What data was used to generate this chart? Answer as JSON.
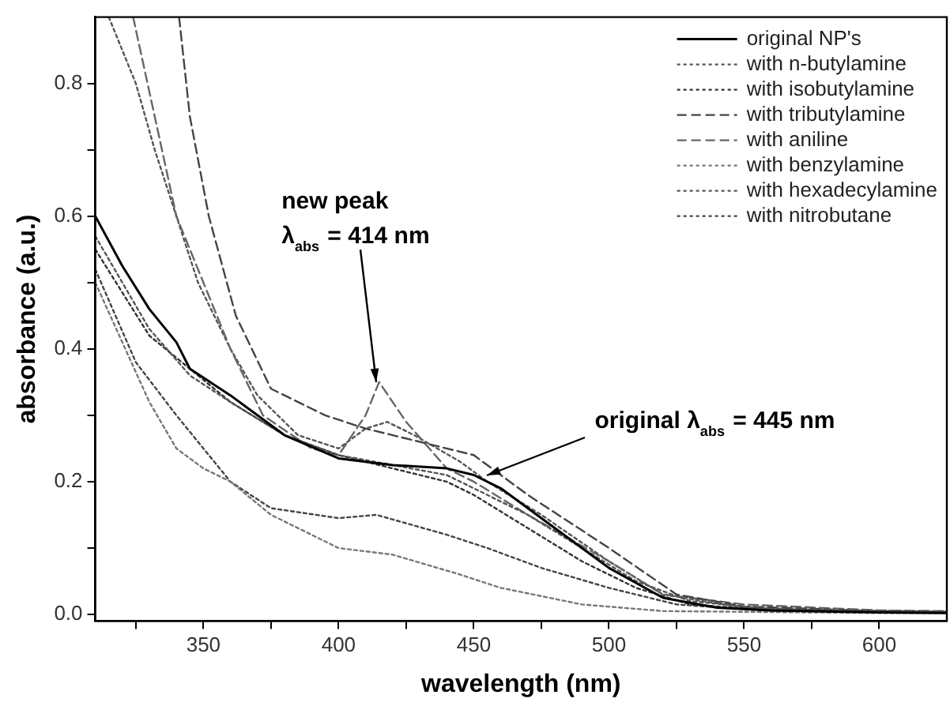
{
  "chart_data": {
    "type": "line",
    "xlabel": "wavelength (nm)",
    "ylabel": "absorbance (a.u.)",
    "xlim": [
      310,
      625
    ],
    "ylim": [
      -0.01,
      0.9
    ],
    "xticks": [
      {
        "value": 325,
        "label": null
      },
      350,
      {
        "value": 375,
        "label": null
      },
      400,
      {
        "value": 425,
        "label": null
      },
      450,
      {
        "value": 475,
        "label": null
      },
      500,
      {
        "value": 525,
        "label": null
      },
      550,
      {
        "value": 575,
        "label": null
      },
      600
    ],
    "yticks": [
      {
        "value": 0,
        "label": "0.0"
      },
      {
        "value": 0.1,
        "label": null
      },
      0.2,
      {
        "value": 0.3,
        "label": null
      },
      0.4,
      {
        "value": 0.5,
        "label": null
      },
      0.6,
      {
        "value": 0.7,
        "label": null
      },
      0.8
    ],
    "grid": false,
    "legend": "top right",
    "marker": "none",
    "series": [
      {
        "name": "original NP's",
        "color": "#000000",
        "line_style": "solid",
        "x": [
          310,
          320,
          330,
          340,
          345,
          360,
          380,
          400,
          420,
          440,
          450,
          460,
          480,
          500,
          520,
          540,
          560,
          600,
          625
        ],
        "values": [
          0.6,
          0.525,
          0.46,
          0.41,
          0.37,
          0.33,
          0.27,
          0.235,
          0.225,
          0.22,
          0.21,
          0.19,
          0.13,
          0.07,
          0.025,
          0.01,
          0.006,
          0.003,
          0.002
        ]
      },
      {
        "name": "with n-butylamine",
        "color": "#555555",
        "line_style": "dotted",
        "x": [
          310,
          330,
          345,
          360,
          380,
          400,
          420,
          440,
          450,
          470,
          490,
          510,
          530,
          560,
          625
        ],
        "values": [
          0.57,
          0.43,
          0.36,
          0.32,
          0.27,
          0.24,
          0.225,
          0.21,
          0.19,
          0.15,
          0.1,
          0.05,
          0.02,
          0.008,
          0.004
        ]
      },
      {
        "name": "with isobutylamine",
        "color": "#333333",
        "line_style": "dotted",
        "x": [
          310,
          330,
          345,
          360,
          380,
          400,
          420,
          440,
          450,
          470,
          490,
          510,
          530,
          560,
          625
        ],
        "values": [
          0.55,
          0.42,
          0.37,
          0.32,
          0.27,
          0.24,
          0.22,
          0.2,
          0.18,
          0.13,
          0.08,
          0.04,
          0.015,
          0.006,
          0.003
        ]
      },
      {
        "name": "with tributylamine",
        "color": "#444444",
        "line_style": "dashed",
        "x": [
          341,
          345,
          352,
          362,
          375,
          395,
          410,
          425,
          450,
          470,
          500,
          525,
          550,
          600,
          625
        ],
        "values": [
          0.9,
          0.75,
          0.6,
          0.45,
          0.34,
          0.3,
          0.28,
          0.265,
          0.24,
          0.18,
          0.1,
          0.03,
          0.012,
          0.005,
          0.004
        ]
      },
      {
        "name": "with aniline",
        "color": "#666666",
        "line_style": "dashed",
        "x": [
          324,
          332,
          340,
          350,
          360,
          372,
          390,
          400,
          410,
          415,
          425,
          440,
          450,
          470,
          500,
          520,
          550,
          600,
          625
        ],
        "values": [
          0.9,
          0.75,
          0.6,
          0.5,
          0.4,
          0.3,
          0.25,
          0.24,
          0.3,
          0.35,
          0.29,
          0.22,
          0.2,
          0.15,
          0.08,
          0.03,
          0.015,
          0.006,
          0.005
        ]
      },
      {
        "name": "with benzylamine",
        "color": "#777777",
        "line_style": "dotted",
        "x": [
          310,
          330,
          340,
          350,
          360,
          375,
          400,
          420,
          445,
          460,
          490,
          520,
          600,
          625
        ],
        "values": [
          0.5,
          0.32,
          0.25,
          0.22,
          0.2,
          0.15,
          0.1,
          0.09,
          0.06,
          0.04,
          0.015,
          0.005,
          0.002,
          0.002
        ]
      },
      {
        "name": "with hexadecylamine",
        "color": "#555555",
        "line_style": "dotted",
        "x": [
          315,
          325,
          332,
          340,
          348,
          360,
          370,
          385,
          400,
          410,
          418,
          428,
          445,
          455,
          475,
          500,
          520,
          550,
          600,
          625
        ],
        "values": [
          0.9,
          0.8,
          0.7,
          0.6,
          0.5,
          0.4,
          0.33,
          0.27,
          0.25,
          0.28,
          0.29,
          0.27,
          0.23,
          0.2,
          0.15,
          0.08,
          0.03,
          0.01,
          0.004,
          0.003
        ]
      },
      {
        "name": "with nitrobutane",
        "color": "#444444",
        "line_style": "dotted",
        "x": [
          310,
          325,
          340,
          360,
          375,
          400,
          414,
          440,
          455,
          475,
          500,
          525,
          560,
          625
        ],
        "values": [
          0.52,
          0.38,
          0.3,
          0.2,
          0.16,
          0.145,
          0.15,
          0.12,
          0.1,
          0.07,
          0.04,
          0.015,
          0.005,
          0.003
        ]
      }
    ],
    "annotations": [
      {
        "text": "new peak\nλ$_{abs}$ = 414 nm",
        "x": 414,
        "y": 0.35
      },
      {
        "text": "original λ$_{abs}$ = 445 nm",
        "x": 455,
        "y": 0.21
      }
    ]
  }
}
